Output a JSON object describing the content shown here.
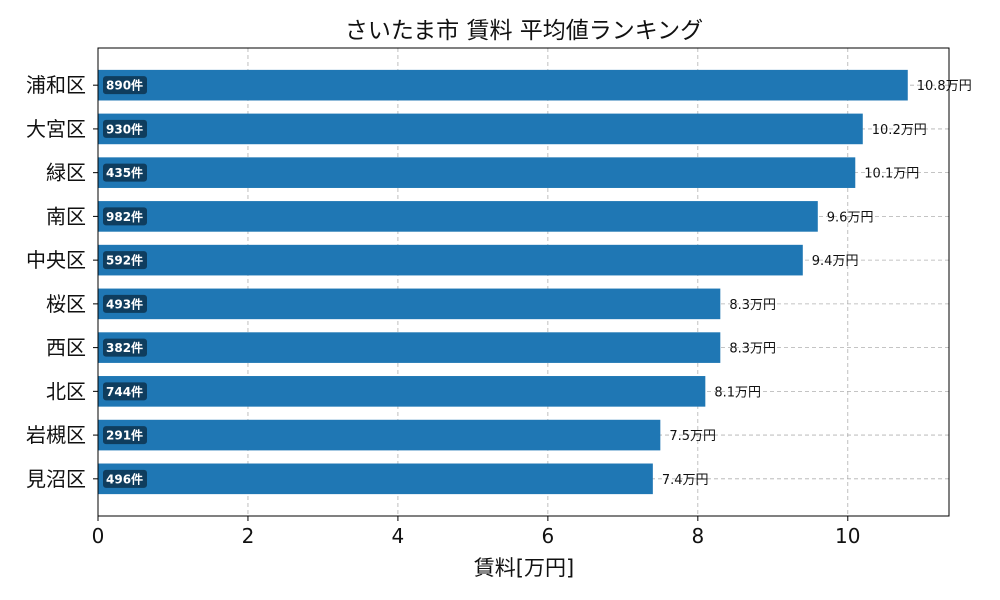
{
  "chart_data": {
    "type": "bar",
    "orientation": "horizontal",
    "title": "さいたま市 賃料 平均値ランキング",
    "xlabel": "賃料[万円]",
    "ylabel": "",
    "xlim": [
      0,
      11.35
    ],
    "xticks": [
      0,
      2,
      4,
      6,
      8,
      10
    ],
    "grid": true,
    "bar_color": "#1f77b4",
    "count_badge_color": "#0f3d5e",
    "value_suffix": "万円",
    "categories": [
      "浦和区",
      "大宮区",
      "緑区",
      "南区",
      "中央区",
      "桜区",
      "西区",
      "北区",
      "岩槻区",
      "見沼区"
    ],
    "values": [
      10.8,
      10.2,
      10.1,
      9.6,
      9.4,
      8.3,
      8.3,
      8.1,
      7.5,
      7.4
    ],
    "value_labels": [
      "10.8万円",
      "10.2万円",
      "10.1万円",
      "9.6万円",
      "9.4万円",
      "8.3万円",
      "8.3万円",
      "8.1万円",
      "7.5万円",
      "7.4万円"
    ],
    "counts": [
      "890件",
      "930件",
      "435件",
      "982件",
      "592件",
      "493件",
      "382件",
      "744件",
      "291件",
      "496件"
    ]
  }
}
